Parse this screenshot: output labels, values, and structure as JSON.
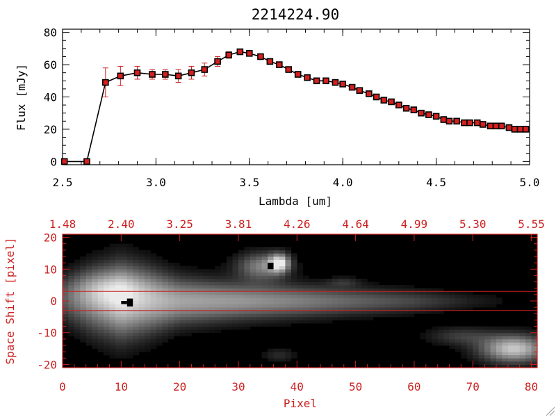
{
  "colors": {
    "axis_black": "#000000",
    "accent_red": "#cc2020",
    "marker_red": "#d42020",
    "image_background": "#000000"
  },
  "chart_data": [
    {
      "type": "line",
      "title": "2214224.90",
      "xlabel": "Lambda [um]",
      "ylabel": "Flux [mJy]",
      "xlim": [
        2.5,
        5.0
      ],
      "ylim": [
        -2,
        82
      ],
      "x_ticks": [
        2.5,
        3.0,
        3.5,
        4.0,
        4.5,
        5.0
      ],
      "x_tick_labels": [
        "2.5",
        "3.0",
        "3.5",
        "4.0",
        "4.5",
        "5.0"
      ],
      "y_ticks": [
        0,
        20,
        40,
        60,
        80
      ],
      "y_tick_labels": [
        "0",
        "20",
        "40",
        "60",
        "80"
      ],
      "grid": false,
      "legend": "none",
      "series": [
        {
          "x": [
            2.51,
            2.63,
            2.73,
            2.81,
            2.9,
            2.98,
            3.05,
            3.12,
            3.19,
            3.26,
            3.33,
            3.39,
            3.45,
            3.5,
            3.56,
            3.61,
            3.66,
            3.71,
            3.76,
            3.81,
            3.86,
            3.91,
            3.96,
            4.0,
            4.05,
            4.09,
            4.14,
            4.18,
            4.22,
            4.26,
            4.3,
            4.34,
            4.38,
            4.42,
            4.46,
            4.5,
            4.54,
            4.57,
            4.61,
            4.65,
            4.68,
            4.72,
            4.75,
            4.79,
            4.82,
            4.85,
            4.89,
            4.92,
            4.95,
            4.98
          ],
          "y": [
            0,
            0,
            49,
            53,
            55,
            54,
            54,
            53,
            55,
            57,
            62,
            66,
            68,
            67,
            65,
            62,
            60,
            57,
            54,
            52,
            50,
            50,
            49,
            48,
            46,
            44,
            42,
            40,
            38,
            37,
            35,
            33,
            32,
            30,
            29,
            28,
            26,
            25,
            25,
            24,
            24,
            24,
            23,
            22,
            22,
            22,
            21,
            20,
            20,
            20
          ],
          "yerr": [
            0,
            0,
            9,
            6,
            4,
            3,
            3,
            4,
            4,
            4,
            3,
            2,
            1,
            1,
            1,
            1,
            1,
            1,
            1,
            1,
            1,
            1,
            1,
            1,
            1,
            1,
            1,
            1,
            1,
            1,
            1,
            1,
            1,
            1,
            1,
            1,
            1,
            1,
            1,
            1,
            1,
            1,
            1,
            1,
            1,
            1,
            1,
            1,
            1,
            1
          ]
        }
      ]
    },
    {
      "type": "heatmap",
      "xlabel": "Pixel",
      "ylabel": "Space Shift [pixel]",
      "xlim": [
        0,
        81
      ],
      "ylim": [
        -21,
        21
      ],
      "x_ticks": [
        0,
        10,
        20,
        30,
        40,
        50,
        60,
        70,
        80
      ],
      "x_tick_labels": [
        "0",
        "10",
        "20",
        "30",
        "40",
        "50",
        "60",
        "70",
        "80"
      ],
      "y_ticks": [
        -20,
        -10,
        0,
        10,
        20
      ],
      "y_tick_labels": [
        "-20",
        "-10",
        "0",
        "10",
        "20"
      ],
      "top_axis_ticks": [
        0,
        10,
        20,
        30,
        40,
        50,
        60,
        70,
        80
      ],
      "top_axis_labels": [
        "1.48",
        "2.40",
        "3.25",
        "3.81",
        "4.26",
        "4.64",
        "4.99",
        "5.30",
        "5.55"
      ],
      "extraction_window": [
        -3,
        3
      ],
      "trace_profile": [
        {
          "x": 0,
          "brightness": 0.3,
          "width": 5
        },
        {
          "x": 5,
          "brightness": 0.6,
          "width": 7
        },
        {
          "x": 10,
          "brightness": 0.9,
          "width": 8
        },
        {
          "x": 14,
          "brightness": 0.8,
          "width": 7
        },
        {
          "x": 20,
          "brightness": 0.7,
          "width": 5
        },
        {
          "x": 30,
          "brightness": 0.65,
          "width": 4
        },
        {
          "x": 40,
          "brightness": 0.55,
          "width": 3.5
        },
        {
          "x": 50,
          "brightness": 0.42,
          "width": 3
        },
        {
          "x": 60,
          "brightness": 0.3,
          "width": 2.5
        },
        {
          "x": 70,
          "brightness": 0.12,
          "width": 2
        },
        {
          "x": 81,
          "brightness": 0.0,
          "width": 2
        }
      ],
      "blobs": [
        {
          "x": 34,
          "y": 11,
          "sx": 3,
          "sy": 3,
          "brightness": 0.55
        },
        {
          "x": 37,
          "y": 12,
          "sx": 1.2,
          "sy": 2,
          "brightness": 0.85
        },
        {
          "x": 77,
          "y": -15,
          "sx": 4,
          "sy": 3,
          "brightness": 0.85
        },
        {
          "x": 68,
          "y": -11,
          "sx": 4,
          "sy": 2,
          "brightness": 0.25
        },
        {
          "x": 37,
          "y": -17,
          "sx": 2,
          "sy": 1.5,
          "brightness": 0.18
        },
        {
          "x": 48,
          "y": 6,
          "sx": 2,
          "sy": 1,
          "brightness": 0.18
        },
        {
          "x": 7,
          "y": 4,
          "sx": 5,
          "sy": 4,
          "brightness": 0.3
        }
      ],
      "masked_pixels": [
        {
          "x": 11,
          "y": -0.5,
          "w": 1,
          "h": 2.5
        },
        {
          "x": 10,
          "y": -0.5,
          "w": 1,
          "h": 1
        },
        {
          "x": 35,
          "y": 11,
          "w": 1,
          "h": 2
        }
      ]
    }
  ]
}
